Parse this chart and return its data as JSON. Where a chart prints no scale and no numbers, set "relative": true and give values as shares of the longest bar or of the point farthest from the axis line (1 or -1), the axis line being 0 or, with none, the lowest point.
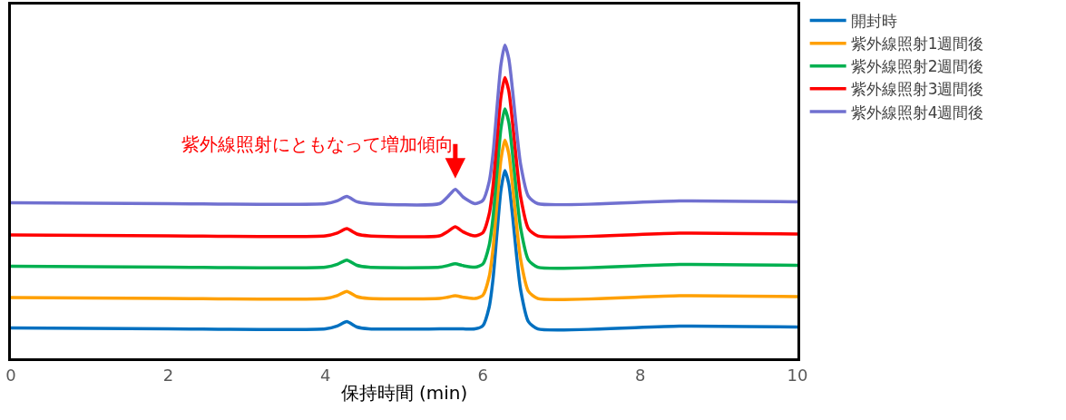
{
  "chart_data": {
    "type": "line",
    "relative": true,
    "xlabel": "保持時間 (min)",
    "x": [
      0,
      2,
      4.0,
      4.15,
      4.27,
      4.4,
      4.55,
      5.45,
      5.55,
      5.65,
      5.75,
      5.9,
      6.0,
      6.08,
      6.13,
      6.18,
      6.23,
      6.28,
      6.33,
      6.38,
      6.43,
      6.48,
      6.58,
      6.7,
      8.5,
      10
    ],
    "xlim": [
      0,
      10
    ],
    "xticks": [
      0,
      2,
      4,
      6,
      8,
      10
    ],
    "tick_labels": "x",
    "legend": "top right",
    "marker": "none",
    "line_style": "solid",
    "series": [
      {
        "name": "開封時",
        "color": "#0070c0",
        "values": [
          0.097,
          0.094,
          0.094,
          0.103,
          0.117,
          0.1,
          0.094,
          0.094,
          0.094,
          0.094,
          0.094,
          0.094,
          0.104,
          0.163,
          0.254,
          0.4,
          0.537,
          0.6,
          0.557,
          0.451,
          0.326,
          0.22,
          0.117,
          0.094,
          0.103,
          0.1
        ]
      },
      {
        "name": "紫外線照射1週間後",
        "color": "#ffa000",
        "values": [
          0.194,
          0.191,
          0.191,
          0.2,
          0.214,
          0.197,
          0.191,
          0.191,
          0.195,
          0.2,
          0.195,
          0.191,
          0.201,
          0.26,
          0.351,
          0.497,
          0.634,
          0.697,
          0.654,
          0.548,
          0.423,
          0.317,
          0.214,
          0.191,
          0.2,
          0.197
        ]
      },
      {
        "name": "紫外線照射2週間後",
        "color": "#00b050",
        "values": [
          0.294,
          0.291,
          0.291,
          0.3,
          0.314,
          0.297,
          0.291,
          0.291,
          0.296,
          0.302,
          0.296,
          0.291,
          0.301,
          0.36,
          0.451,
          0.597,
          0.734,
          0.797,
          0.754,
          0.648,
          0.523,
          0.417,
          0.314,
          0.291,
          0.3,
          0.297
        ]
      },
      {
        "name": "紫外線照射3週間後",
        "color": "#ff0000",
        "values": [
          0.394,
          0.391,
          0.391,
          0.4,
          0.414,
          0.397,
          0.391,
          0.391,
          0.404,
          0.42,
          0.404,
          0.391,
          0.401,
          0.46,
          0.551,
          0.697,
          0.834,
          0.897,
          0.854,
          0.748,
          0.623,
          0.517,
          0.414,
          0.391,
          0.4,
          0.397
        ]
      },
      {
        "name": "紫外線照射4週間後",
        "color": "#7070d0",
        "values": [
          0.497,
          0.494,
          0.494,
          0.503,
          0.517,
          0.5,
          0.494,
          0.494,
          0.515,
          0.54,
          0.515,
          0.494,
          0.504,
          0.563,
          0.654,
          0.8,
          0.937,
          1.0,
          0.957,
          0.851,
          0.726,
          0.62,
          0.517,
          0.494,
          0.503,
          0.5
        ]
      }
    ],
    "annotations": [
      {
        "text": "紫外線照射にともなって増加傾向",
        "x": 5.65,
        "y": 0.54
      }
    ]
  }
}
